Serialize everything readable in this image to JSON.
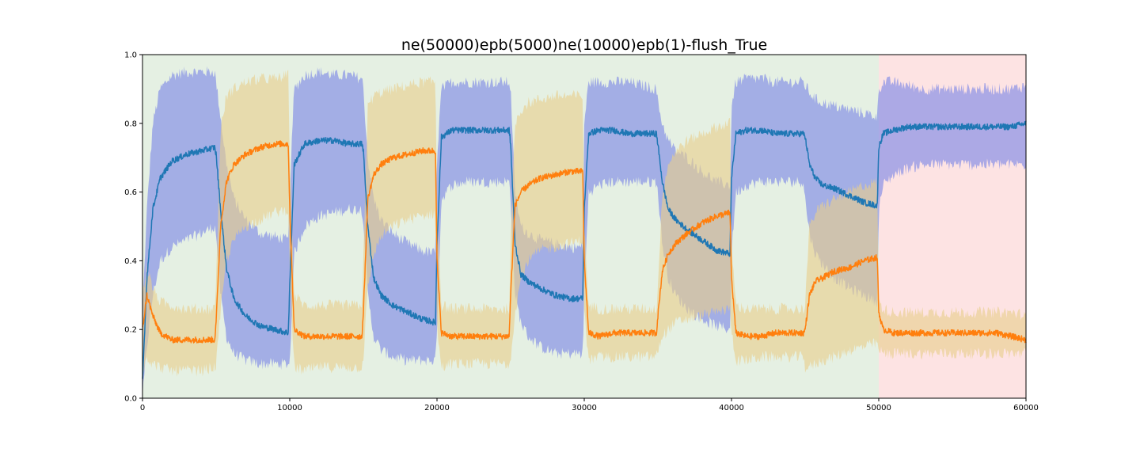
{
  "chart_data": {
    "type": "line",
    "title": "ne(50000)epb(5000)ne(10000)epb(1)-flush_True",
    "xlabel": "",
    "ylabel": "",
    "xlim": [
      0,
      60000
    ],
    "ylim": [
      0,
      1.0
    ],
    "xticks": [
      0,
      10000,
      20000,
      30000,
      40000,
      50000,
      60000
    ],
    "yticks": [
      0.0,
      0.2,
      0.4,
      0.6,
      0.8,
      1.0
    ],
    "xtick_labels": [
      "0",
      "10000",
      "20000",
      "30000",
      "40000",
      "50000",
      "60000"
    ],
    "ytick_labels": [
      "0.0",
      "0.2",
      "0.4",
      "0.6",
      "0.8",
      "1.0"
    ],
    "grid": false,
    "background_regions": [
      {
        "x0": 0,
        "x1": 50000,
        "color": "#e5f0e3"
      },
      {
        "x0": 50000,
        "x1": 60000,
        "color": "#fde3e3"
      }
    ],
    "series": [
      {
        "color": "#1f77b4",
        "band_color": "#7b86e6",
        "x": [
          0,
          300,
          700,
          1200,
          2000,
          3000,
          4000,
          4900,
          5000,
          5300,
          5700,
          6200,
          7000,
          8000,
          9000,
          9900,
          10000,
          10300,
          11000,
          12000,
          13000,
          14000,
          14900,
          15000,
          15300,
          15700,
          16200,
          17000,
          18000,
          19000,
          19900,
          20000,
          20300,
          21000,
          22000,
          23000,
          24000,
          24900,
          25000,
          25300,
          25700,
          26200,
          27000,
          28000,
          29000,
          29900,
          30000,
          30300,
          31000,
          32000,
          33000,
          34000,
          34900,
          35000,
          35300,
          35700,
          36200,
          37000,
          38000,
          39000,
          39900,
          40000,
          40300,
          41000,
          42000,
          43000,
          44000,
          44900,
          45000,
          45300,
          45700,
          46200,
          47000,
          48000,
          49000,
          49900,
          50000,
          50300,
          51000,
          52000,
          53000,
          54000,
          55000,
          56000,
          57000,
          58000,
          59000,
          60000
        ],
        "y": [
          0.05,
          0.35,
          0.55,
          0.64,
          0.69,
          0.71,
          0.72,
          0.73,
          0.71,
          0.55,
          0.38,
          0.29,
          0.24,
          0.21,
          0.2,
          0.19,
          0.33,
          0.68,
          0.74,
          0.75,
          0.75,
          0.74,
          0.74,
          0.72,
          0.5,
          0.35,
          0.3,
          0.27,
          0.25,
          0.23,
          0.22,
          0.45,
          0.76,
          0.78,
          0.78,
          0.78,
          0.78,
          0.78,
          0.74,
          0.45,
          0.36,
          0.34,
          0.32,
          0.3,
          0.29,
          0.29,
          0.55,
          0.77,
          0.78,
          0.78,
          0.77,
          0.77,
          0.77,
          0.74,
          0.63,
          0.55,
          0.52,
          0.49,
          0.46,
          0.43,
          0.42,
          0.64,
          0.77,
          0.78,
          0.78,
          0.77,
          0.77,
          0.77,
          0.76,
          0.68,
          0.64,
          0.62,
          0.61,
          0.59,
          0.57,
          0.56,
          0.73,
          0.77,
          0.78,
          0.79,
          0.79,
          0.79,
          0.79,
          0.79,
          0.79,
          0.79,
          0.79,
          0.8
        ],
        "upper": [
          0.25,
          0.55,
          0.8,
          0.9,
          0.94,
          0.95,
          0.95,
          0.95,
          0.92,
          0.82,
          0.68,
          0.58,
          0.52,
          0.48,
          0.47,
          0.46,
          0.6,
          0.9,
          0.94,
          0.95,
          0.94,
          0.94,
          0.93,
          0.9,
          0.7,
          0.58,
          0.52,
          0.48,
          0.45,
          0.43,
          0.42,
          0.7,
          0.9,
          0.92,
          0.92,
          0.92,
          0.92,
          0.92,
          0.9,
          0.6,
          0.5,
          0.48,
          0.46,
          0.45,
          0.44,
          0.44,
          0.8,
          0.92,
          0.92,
          0.92,
          0.92,
          0.91,
          0.9,
          0.86,
          0.8,
          0.75,
          0.72,
          0.7,
          0.66,
          0.63,
          0.62,
          0.85,
          0.92,
          0.93,
          0.93,
          0.92,
          0.92,
          0.92,
          0.91,
          0.89,
          0.87,
          0.86,
          0.85,
          0.84,
          0.83,
          0.82,
          0.9,
          0.92,
          0.92,
          0.91,
          0.9,
          0.9,
          0.9,
          0.9,
          0.9,
          0.9,
          0.9,
          0.91
        ],
        "lower": [
          0.0,
          0.15,
          0.3,
          0.4,
          0.44,
          0.46,
          0.48,
          0.5,
          0.48,
          0.3,
          0.18,
          0.13,
          0.11,
          0.1,
          0.1,
          0.1,
          0.1,
          0.42,
          0.5,
          0.53,
          0.54,
          0.55,
          0.55,
          0.52,
          0.3,
          0.18,
          0.14,
          0.12,
          0.11,
          0.11,
          0.11,
          0.2,
          0.58,
          0.62,
          0.63,
          0.63,
          0.63,
          0.63,
          0.58,
          0.3,
          0.22,
          0.18,
          0.15,
          0.13,
          0.13,
          0.13,
          0.3,
          0.6,
          0.62,
          0.63,
          0.63,
          0.63,
          0.63,
          0.6,
          0.45,
          0.35,
          0.3,
          0.26,
          0.23,
          0.21,
          0.2,
          0.42,
          0.6,
          0.62,
          0.63,
          0.63,
          0.63,
          0.63,
          0.58,
          0.48,
          0.42,
          0.39,
          0.35,
          0.32,
          0.3,
          0.28,
          0.55,
          0.62,
          0.65,
          0.67,
          0.68,
          0.68,
          0.68,
          0.68,
          0.68,
          0.68,
          0.68,
          0.68
        ]
      },
      {
        "color": "#ff7f0e",
        "band_color": "#e8cf8c",
        "x": [
          0,
          300,
          700,
          1200,
          2000,
          3000,
          4000,
          4900,
          5000,
          5300,
          5700,
          6200,
          7000,
          8000,
          9000,
          9900,
          10000,
          10300,
          11000,
          12000,
          13000,
          14000,
          14900,
          15000,
          15300,
          15700,
          16200,
          17000,
          18000,
          19000,
          19900,
          20000,
          20300,
          21000,
          22000,
          23000,
          24000,
          24900,
          25000,
          25300,
          25700,
          26200,
          27000,
          28000,
          29000,
          29900,
          30000,
          30300,
          31000,
          32000,
          33000,
          34000,
          34900,
          35000,
          35300,
          35700,
          36200,
          37000,
          38000,
          39000,
          39900,
          40000,
          40300,
          41000,
          42000,
          43000,
          44000,
          44900,
          45000,
          45300,
          45700,
          46200,
          47000,
          48000,
          49000,
          49900,
          50000,
          50300,
          51000,
          52000,
          53000,
          54000,
          55000,
          56000,
          57000,
          58000,
          59000,
          60000
        ],
        "y": [
          0.2,
          0.3,
          0.24,
          0.19,
          0.17,
          0.17,
          0.17,
          0.17,
          0.22,
          0.5,
          0.63,
          0.68,
          0.71,
          0.73,
          0.74,
          0.74,
          0.55,
          0.2,
          0.18,
          0.18,
          0.18,
          0.18,
          0.18,
          0.25,
          0.58,
          0.65,
          0.68,
          0.7,
          0.71,
          0.72,
          0.72,
          0.4,
          0.19,
          0.18,
          0.18,
          0.18,
          0.18,
          0.18,
          0.3,
          0.56,
          0.6,
          0.62,
          0.64,
          0.65,
          0.66,
          0.66,
          0.4,
          0.19,
          0.18,
          0.19,
          0.19,
          0.19,
          0.19,
          0.24,
          0.37,
          0.42,
          0.45,
          0.48,
          0.51,
          0.53,
          0.54,
          0.35,
          0.19,
          0.18,
          0.18,
          0.19,
          0.19,
          0.19,
          0.2,
          0.3,
          0.34,
          0.35,
          0.37,
          0.38,
          0.4,
          0.41,
          0.25,
          0.2,
          0.19,
          0.19,
          0.19,
          0.19,
          0.19,
          0.19,
          0.19,
          0.19,
          0.18,
          0.17
        ],
        "upper": [
          0.3,
          0.38,
          0.32,
          0.28,
          0.27,
          0.26,
          0.26,
          0.26,
          0.34,
          0.78,
          0.88,
          0.9,
          0.92,
          0.93,
          0.93,
          0.94,
          0.7,
          0.3,
          0.27,
          0.27,
          0.27,
          0.27,
          0.27,
          0.4,
          0.85,
          0.88,
          0.89,
          0.9,
          0.91,
          0.92,
          0.92,
          0.55,
          0.27,
          0.26,
          0.26,
          0.26,
          0.26,
          0.26,
          0.45,
          0.8,
          0.84,
          0.86,
          0.87,
          0.88,
          0.88,
          0.88,
          0.5,
          0.27,
          0.26,
          0.26,
          0.26,
          0.26,
          0.26,
          0.32,
          0.6,
          0.68,
          0.72,
          0.75,
          0.77,
          0.79,
          0.8,
          0.45,
          0.27,
          0.26,
          0.26,
          0.26,
          0.26,
          0.26,
          0.28,
          0.5,
          0.54,
          0.56,
          0.58,
          0.6,
          0.62,
          0.63,
          0.28,
          0.26,
          0.25,
          0.25,
          0.25,
          0.25,
          0.25,
          0.25,
          0.25,
          0.25,
          0.25,
          0.24
        ],
        "lower": [
          0.08,
          0.12,
          0.1,
          0.09,
          0.08,
          0.08,
          0.08,
          0.09,
          0.1,
          0.25,
          0.4,
          0.46,
          0.5,
          0.52,
          0.54,
          0.55,
          0.35,
          0.09,
          0.08,
          0.09,
          0.09,
          0.09,
          0.09,
          0.12,
          0.32,
          0.42,
          0.47,
          0.5,
          0.52,
          0.53,
          0.54,
          0.2,
          0.09,
          0.1,
          0.1,
          0.1,
          0.1,
          0.1,
          0.12,
          0.25,
          0.35,
          0.4,
          0.43,
          0.44,
          0.45,
          0.46,
          0.25,
          0.11,
          0.12,
          0.12,
          0.12,
          0.12,
          0.12,
          0.14,
          0.18,
          0.2,
          0.22,
          0.23,
          0.24,
          0.25,
          0.26,
          0.2,
          0.11,
          0.11,
          0.12,
          0.12,
          0.12,
          0.12,
          0.09,
          0.09,
          0.1,
          0.11,
          0.12,
          0.14,
          0.15,
          0.16,
          0.14,
          0.13,
          0.13,
          0.13,
          0.13,
          0.13,
          0.13,
          0.13,
          0.13,
          0.13,
          0.13,
          0.13
        ]
      }
    ]
  }
}
